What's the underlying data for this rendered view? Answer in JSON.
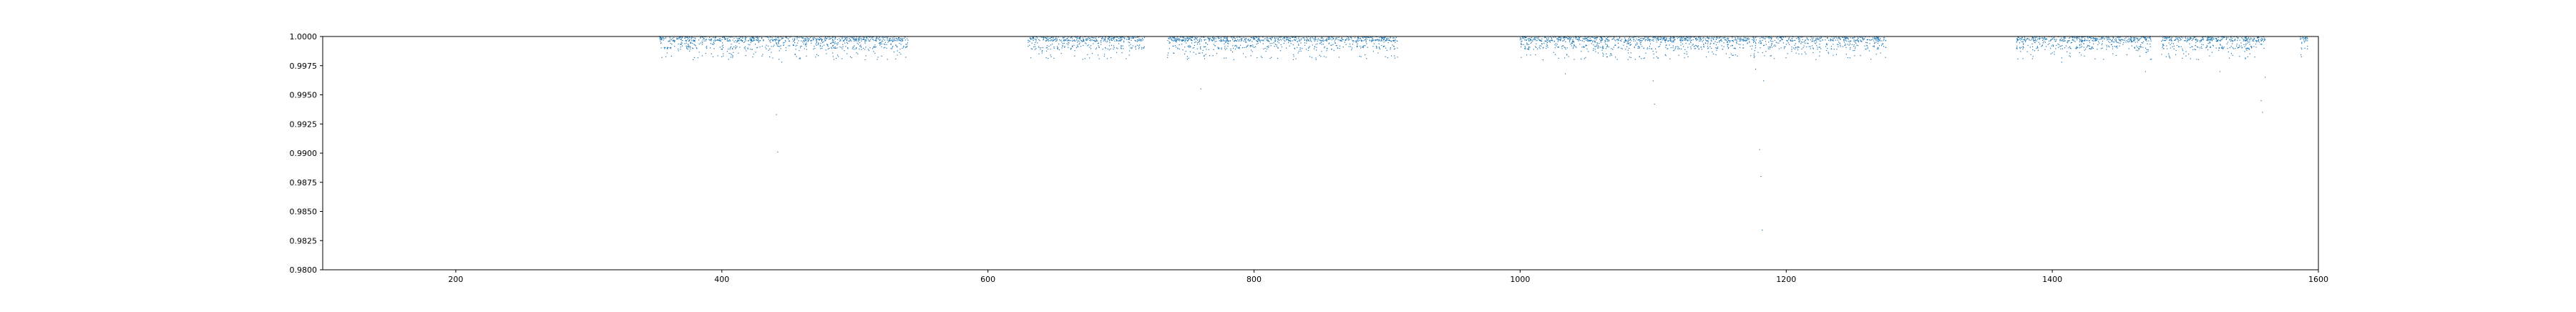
{
  "chart_data": {
    "type": "scatter",
    "title": "",
    "xlabel": "",
    "ylabel": "",
    "xlim": [
      100,
      1600
    ],
    "ylim": [
      0.98,
      1.0
    ],
    "x_ticks": [
      200,
      400,
      600,
      800,
      1000,
      1200,
      1400,
      1600
    ],
    "y_ticks": [
      0.98,
      0.9825,
      0.985,
      0.9875,
      0.99,
      0.9925,
      0.995,
      0.9975,
      1.0
    ],
    "x_tick_labels": [
      "200",
      "400",
      "600",
      "800",
      "1000",
      "1200",
      "1400",
      "1600"
    ],
    "y_tick_labels": [
      "0.9800",
      "0.9825",
      "0.9850",
      "0.9875",
      "0.9900",
      "0.9925",
      "0.9950",
      "0.9975",
      "1.0000"
    ],
    "grid": false,
    "marker_color": "#1f77b4",
    "segments": [
      {
        "start": 353,
        "end": 540
      },
      {
        "start": 630,
        "end": 718
      },
      {
        "start": 735,
        "end": 908
      },
      {
        "start": 1000,
        "end": 1275
      },
      {
        "start": 1373,
        "end": 1475
      },
      {
        "start": 1482,
        "end": 1560
      },
      {
        "start": 1586,
        "end": 1592
      }
    ],
    "baseline_flux": 0.9997,
    "outliers": [
      {
        "x": 355,
        "y": 0.9982
      },
      {
        "x": 441,
        "y": 0.9933
      },
      {
        "x": 442,
        "y": 0.9901
      },
      {
        "x": 445,
        "y": 0.9978
      },
      {
        "x": 735,
        "y": 0.9982
      },
      {
        "x": 760,
        "y": 0.9955
      },
      {
        "x": 1034,
        "y": 0.9968
      },
      {
        "x": 1100,
        "y": 0.9962
      },
      {
        "x": 1101,
        "y": 0.9942
      },
      {
        "x": 1177,
        "y": 0.9972
      },
      {
        "x": 1180,
        "y": 0.9903
      },
      {
        "x": 1181,
        "y": 0.988
      },
      {
        "x": 1182,
        "y": 0.9834
      },
      {
        "x": 1183,
        "y": 0.9962
      },
      {
        "x": 1407,
        "y": 0.9978
      },
      {
        "x": 1470,
        "y": 0.997
      },
      {
        "x": 1526,
        "y": 0.997
      },
      {
        "x": 1557,
        "y": 0.9945
      },
      {
        "x": 1558,
        "y": 0.9935
      },
      {
        "x": 1560,
        "y": 0.9965
      }
    ]
  }
}
